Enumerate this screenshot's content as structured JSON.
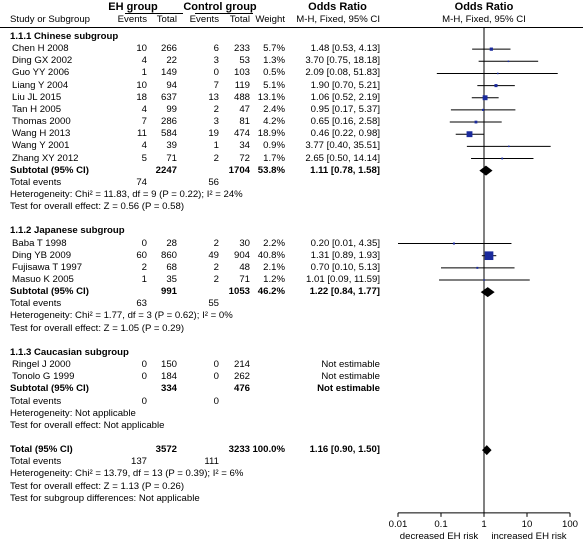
{
  "header": {
    "eh_group": "EH group",
    "control_group": "Control group",
    "odds_ratio": "Odds Ratio",
    "odds_ratio_right": "Odds Ratio",
    "study": "Study or Subgroup",
    "eh_events": "Events",
    "eh_total": "Total",
    "ctrl_events": "Events",
    "ctrl_total": "Total",
    "weight": "Weight",
    "method": "M-H, Fixed, 95% CI",
    "method_right": "M-H, Fixed, 95% CI"
  },
  "rows": [
    {
      "kind": "subgroup",
      "label": "1.1.1 Chinese subgroup"
    },
    {
      "kind": "study",
      "label": "Chen H 2008",
      "e1": "10",
      "t1": "266",
      "e2": "6",
      "t2": "233",
      "w": "5.7%",
      "ci": "1.48 [0.53, 4.13]"
    },
    {
      "kind": "study",
      "label": "Ding GX 2002",
      "e1": "4",
      "t1": "22",
      "e2": "3",
      "t2": "53",
      "w": "1.3%",
      "ci": "3.70 [0.75, 18.18]"
    },
    {
      "kind": "study",
      "label": "Guo YY 2006",
      "e1": "1",
      "t1": "149",
      "e2": "0",
      "t2": "103",
      "w": "0.5%",
      "ci": "2.09 [0.08, 51.83]"
    },
    {
      "kind": "study",
      "label": "Liang Y  2004",
      "e1": "10",
      "t1": "94",
      "e2": "7",
      "t2": "119",
      "w": "5.1%",
      "ci": "1.90 [0.70, 5.21]"
    },
    {
      "kind": "study",
      "label": "Liu JL 2015",
      "e1": "18",
      "t1": "637",
      "e2": "13",
      "t2": "488",
      "w": "13.1%",
      "ci": "1.06 [0.52, 2.19]"
    },
    {
      "kind": "study",
      "label": "Tan H 2005",
      "e1": "4",
      "t1": "99",
      "e2": "2",
      "t2": "47",
      "w": "2.4%",
      "ci": "0.95 [0.17, 5.37]"
    },
    {
      "kind": "study",
      "label": "Thomas 2000",
      "e1": "7",
      "t1": "286",
      "e2": "3",
      "t2": "81",
      "w": "4.2%",
      "ci": "0.65 [0.16, 2.58]"
    },
    {
      "kind": "study",
      "label": "Wang H 2013",
      "e1": "11",
      "t1": "584",
      "e2": "19",
      "t2": "474",
      "w": "18.9%",
      "ci": "0.46 [0.22, 0.98]"
    },
    {
      "kind": "study",
      "label": "Wang Y 2001",
      "e1": "4",
      "t1": "39",
      "e2": "1",
      "t2": "34",
      "w": "0.9%",
      "ci": "3.77 [0.40, 35.51]"
    },
    {
      "kind": "study",
      "label": "Zhang XY 2012",
      "e1": "5",
      "t1": "71",
      "e2": "2",
      "t2": "72",
      "w": "1.7%",
      "ci": "2.65 [0.50, 14.14]"
    },
    {
      "kind": "subtotal",
      "label": "Subtotal (95% CI)",
      "t1": "2247",
      "t2": "1704",
      "w": "53.8%",
      "ci": "1.11 [0.78, 1.58]"
    },
    {
      "kind": "text",
      "label": "Total events",
      "e1": "74",
      "e2": "56"
    },
    {
      "kind": "text",
      "label": "Heterogeneity: Chi² = 11.83, df = 9 (P = 0.22); I² = 24%"
    },
    {
      "kind": "text",
      "label": "Test for overall effect: Z = 0.56 (P = 0.58)"
    },
    {
      "kind": "gap"
    },
    {
      "kind": "subgroup",
      "label": "1.1.2 Japanese subgroup"
    },
    {
      "kind": "study",
      "label": "Baba T 1998",
      "e1": "0",
      "t1": "28",
      "e2": "2",
      "t2": "30",
      "w": "2.2%",
      "ci": "0.20 [0.01, 4.35]"
    },
    {
      "kind": "study",
      "label": "Ding YB 2009",
      "e1": "60",
      "t1": "860",
      "e2": "49",
      "t2": "904",
      "w": "40.8%",
      "ci": "1.31 [0.89, 1.93]"
    },
    {
      "kind": "study",
      "label": "Fujisawa T 1997",
      "e1": "2",
      "t1": "68",
      "e2": "2",
      "t2": "48",
      "w": "2.1%",
      "ci": "0.70 [0.10, 5.13]"
    },
    {
      "kind": "study",
      "label": "Masuo K 2005",
      "e1": "1",
      "t1": "35",
      "e2": "2",
      "t2": "71",
      "w": "1.2%",
      "ci": "1.01 [0.09, 11.59]"
    },
    {
      "kind": "subtotal",
      "label": "Subtotal (95% CI)",
      "t1": "991",
      "t2": "1053",
      "w": "46.2%",
      "ci": "1.22 [0.84, 1.77]"
    },
    {
      "kind": "text",
      "label": "Total events",
      "e1": "63",
      "e2": "55"
    },
    {
      "kind": "text",
      "label": "Heterogeneity: Chi² = 1.77, df = 3 (P = 0.62); I² = 0%"
    },
    {
      "kind": "text",
      "label": "Test for overall effect: Z = 1.05 (P = 0.29)"
    },
    {
      "kind": "gap"
    },
    {
      "kind": "subgroup",
      "label": "1.1.3 Caucasian subgroup"
    },
    {
      "kind": "study",
      "label": "Ringel J 2000",
      "e1": "0",
      "t1": "150",
      "e2": "0",
      "t2": "214",
      "w": "",
      "ci": "Not estimable"
    },
    {
      "kind": "study",
      "label": "Tonolo G 1999",
      "e1": "0",
      "t1": "184",
      "e2": "0",
      "t2": "262",
      "w": "",
      "ci": "Not estimable"
    },
    {
      "kind": "subtotal",
      "label": "Subtotal (95% CI)",
      "t1": "334",
      "t2": "476",
      "w": "",
      "ci": "Not estimable"
    },
    {
      "kind": "text",
      "label": "Total events",
      "e1": "0",
      "e2": "0"
    },
    {
      "kind": "text",
      "label": "Heterogeneity: Not applicable"
    },
    {
      "kind": "text",
      "label": "Test for overall effect: Not applicable"
    },
    {
      "kind": "gap"
    },
    {
      "kind": "total",
      "label": "Total (95% CI)",
      "t1": "3572",
      "t2": "3233",
      "w": "100.0%",
      "ci": "1.16 [0.90, 1.50]"
    },
    {
      "kind": "text",
      "label": "Total events",
      "e1": "137",
      "e2": "111"
    },
    {
      "kind": "text",
      "label": "Heterogeneity: Chi² = 13.79, df = 13 (P = 0.39); I² = 6%"
    },
    {
      "kind": "text",
      "label": "Test for overall effect: Z = 1.13 (P = 0.26)"
    },
    {
      "kind": "text",
      "label": "Test for subgroup differences: Not applicable"
    }
  ],
  "chart_data": {
    "type": "scatter",
    "x_scale": "log",
    "xlim": [
      0.01,
      100
    ],
    "ticks": [
      "0.01",
      "0.1",
      "1",
      "10",
      "100"
    ],
    "tick_values": [
      0.01,
      0.1,
      1,
      10,
      100
    ],
    "left_label": "decreased EH risk",
    "right_label": "increased EH risk",
    "reference_line": 1,
    "square_color": "#1a2a9c",
    "studies": [
      {
        "row": 1,
        "or": 1.48,
        "lo": 0.53,
        "hi": 4.13,
        "weight": 5.7
      },
      {
        "row": 2,
        "or": 3.7,
        "lo": 0.75,
        "hi": 18.18,
        "weight": 1.3
      },
      {
        "row": 3,
        "or": 2.09,
        "lo": 0.08,
        "hi": 51.83,
        "weight": 0.5
      },
      {
        "row": 4,
        "or": 1.9,
        "lo": 0.7,
        "hi": 5.21,
        "weight": 5.1
      },
      {
        "row": 5,
        "or": 1.06,
        "lo": 0.52,
        "hi": 2.19,
        "weight": 13.1
      },
      {
        "row": 6,
        "or": 0.95,
        "lo": 0.17,
        "hi": 5.37,
        "weight": 2.4
      },
      {
        "row": 7,
        "or": 0.65,
        "lo": 0.16,
        "hi": 2.58,
        "weight": 4.2
      },
      {
        "row": 8,
        "or": 0.46,
        "lo": 0.22,
        "hi": 0.98,
        "weight": 18.9
      },
      {
        "row": 9,
        "or": 3.77,
        "lo": 0.4,
        "hi": 35.51,
        "weight": 0.9
      },
      {
        "row": 10,
        "or": 2.65,
        "lo": 0.5,
        "hi": 14.14,
        "weight": 1.7
      },
      {
        "row": 17,
        "or": 0.2,
        "lo": 0.01,
        "hi": 4.35,
        "weight": 2.2
      },
      {
        "row": 18,
        "or": 1.31,
        "lo": 0.89,
        "hi": 1.93,
        "weight": 40.8
      },
      {
        "row": 19,
        "or": 0.7,
        "lo": 0.1,
        "hi": 5.13,
        "weight": 2.1
      },
      {
        "row": 20,
        "or": 1.01,
        "lo": 0.09,
        "hi": 11.59,
        "weight": 1.2
      }
    ],
    "diamonds": [
      {
        "row": 11,
        "or": 1.11,
        "lo": 0.78,
        "hi": 1.58
      },
      {
        "row": 21,
        "or": 1.22,
        "lo": 0.84,
        "hi": 1.77
      },
      {
        "row": 34,
        "or": 1.16,
        "lo": 0.9,
        "hi": 1.5
      }
    ]
  }
}
